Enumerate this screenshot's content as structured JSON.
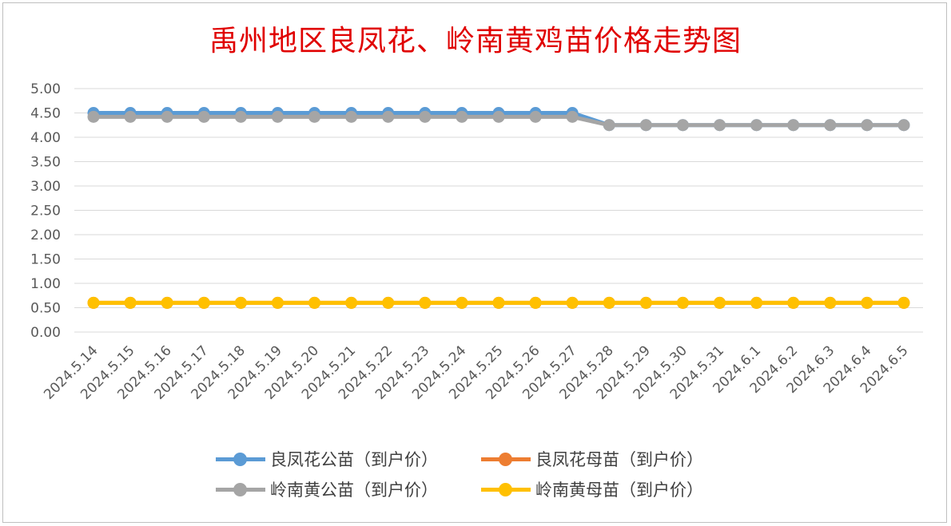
{
  "chart_data": {
    "type": "line",
    "title": "禹州地区良凤花、岭南黄鸡苗价格走势图",
    "categories": [
      "2024.5.14",
      "2024.5.15",
      "2024.5.16",
      "2024.5.17",
      "2024.5.18",
      "2024.5.19",
      "2024.5.20",
      "2024.5.21",
      "2024.5.22",
      "2024.5.23",
      "2024.5.24",
      "2024.5.25",
      "2024.5.26",
      "2024.5.27",
      "2024.5.28",
      "2024.5.29",
      "2024.5.30",
      "2024.5.31",
      "2024.6.1",
      "2024.6.2",
      "2024.6.3",
      "2024.6.4",
      "2024.6.5"
    ],
    "y_ticks": [
      "0.00",
      "0.50",
      "1.00",
      "1.50",
      "2.00",
      "2.50",
      "3.00",
      "3.50",
      "4.00",
      "4.50",
      "5.00"
    ],
    "ylim": [
      0,
      5
    ],
    "grid": true,
    "legend_position": "bottom",
    "series": [
      {
        "name": "良凤花公苗（到户价）",
        "color": "#5B9BD5",
        "values": [
          4.5,
          4.5,
          4.5,
          4.5,
          4.5,
          4.5,
          4.5,
          4.5,
          4.5,
          4.5,
          4.5,
          4.5,
          4.5,
          4.5,
          4.25,
          4.25,
          4.25,
          4.25,
          4.25,
          4.25,
          4.25,
          4.25,
          4.25
        ]
      },
      {
        "name": "良凤花母苗（到户价）",
        "color": "#ED7D31",
        "values": [
          0.6,
          0.6,
          0.6,
          0.6,
          0.6,
          0.6,
          0.6,
          0.6,
          0.6,
          0.6,
          0.6,
          0.6,
          0.6,
          0.6,
          0.6,
          0.6,
          0.6,
          0.6,
          0.6,
          0.6,
          0.6,
          0.6,
          0.6
        ]
      },
      {
        "name": "岭南黄公苗（到户价）",
        "color": "#A5A5A5",
        "values": [
          4.42,
          4.42,
          4.42,
          4.42,
          4.42,
          4.42,
          4.42,
          4.42,
          4.42,
          4.42,
          4.42,
          4.42,
          4.42,
          4.42,
          4.25,
          4.25,
          4.25,
          4.25,
          4.25,
          4.25,
          4.25,
          4.25,
          4.25
        ]
      },
      {
        "name": "岭南黄母苗（到户价）",
        "color": "#FFC000",
        "values": [
          0.6,
          0.6,
          0.6,
          0.6,
          0.6,
          0.6,
          0.6,
          0.6,
          0.6,
          0.6,
          0.6,
          0.6,
          0.6,
          0.6,
          0.6,
          0.6,
          0.6,
          0.6,
          0.6,
          0.6,
          0.6,
          0.6,
          0.6
        ]
      }
    ]
  }
}
